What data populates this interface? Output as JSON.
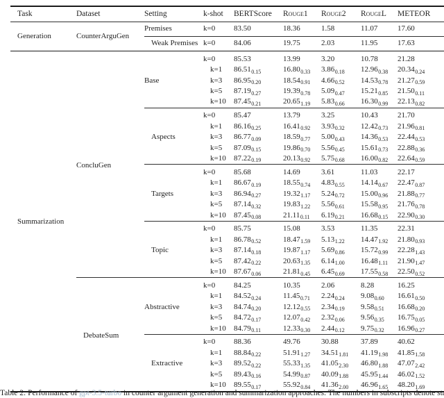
{
  "table": {
    "columns": [
      {
        "label": "Task",
        "smallcaps": false
      },
      {
        "label": "Dataset",
        "smallcaps": false
      },
      {
        "label": "Setting",
        "smallcaps": false
      },
      {
        "label": "k-shot",
        "smallcaps": false
      },
      {
        "label": "BERTScore",
        "smallcaps": false
      },
      {
        "label": "Rouge1",
        "smallcaps": true
      },
      {
        "label": "Rouge2",
        "smallcaps": true
      },
      {
        "label": "RougeL",
        "smallcaps": true
      },
      {
        "label": "METEOR",
        "smallcaps": false
      }
    ],
    "tasks": [
      {
        "task": "Generation",
        "datasets": [
          {
            "name": "CounterArguGen",
            "settings": [
              {
                "name": "Premises",
                "rows": [
                  [
                    "k=0",
                    "83.50",
                    "",
                    "18.36",
                    "",
                    "1.58",
                    "",
                    "11.07",
                    "",
                    "17.60",
                    ""
                  ]
                ]
              },
              {
                "name": "Weak Premises",
                "rows": [
                  [
                    "k=0",
                    "84.06",
                    "",
                    "19.75",
                    "",
                    "2.03",
                    "",
                    "11.95",
                    "",
                    "17.63",
                    ""
                  ]
                ]
              }
            ]
          }
        ]
      },
      {
        "task": "Summarization",
        "datasets": [
          {
            "name": "ConcluGen",
            "settings": [
              {
                "name": "Base",
                "rows": [
                  [
                    "k=0",
                    "85.53",
                    "",
                    "13.99",
                    "",
                    "3.20",
                    "",
                    "10.78",
                    "",
                    "21.28",
                    ""
                  ],
                  [
                    "k=1",
                    "86.51",
                    "0.15",
                    "16.80",
                    "0.33",
                    "3.86",
                    "0.18",
                    "12.96",
                    "0.38",
                    "20.34",
                    "0.24"
                  ],
                  [
                    "k=3",
                    "86.95",
                    "0.20",
                    "18.54",
                    "0.91",
                    "4.66",
                    "0.52",
                    "14.53",
                    "0.78",
                    "21.27",
                    "0.59"
                  ],
                  [
                    "k=5",
                    "87.19",
                    "0.27",
                    "19.39",
                    "0.78",
                    "5.09",
                    "0.47",
                    "15.21",
                    "0.85",
                    "21.50",
                    "0.11"
                  ],
                  [
                    "k=10",
                    "87.45",
                    "0.21",
                    "20.65",
                    "1.19",
                    "5.83",
                    "0.66",
                    "16.30",
                    "0.99",
                    "22.13",
                    "0.82"
                  ]
                ]
              },
              {
                "name": "Aspects",
                "rows": [
                  [
                    "k=0",
                    "85.47",
                    "",
                    "13.79",
                    "",
                    "3.25",
                    "",
                    "10.43",
                    "",
                    "21.70",
                    ""
                  ],
                  [
                    "k=1",
                    "86.16",
                    "0.25",
                    "16.41",
                    "0.92",
                    "3.93",
                    "0.32",
                    "12.42",
                    "0.73",
                    "21.96",
                    "0.81"
                  ],
                  [
                    "k=3",
                    "86.77",
                    "0.09",
                    "18.59",
                    "0.77",
                    "5.00",
                    "0.43",
                    "14.36",
                    "0.53",
                    "22.44",
                    "0.53"
                  ],
                  [
                    "k=5",
                    "87.09",
                    "0.15",
                    "19.86",
                    "0.70",
                    "5.56",
                    "0.45",
                    "15.61",
                    "0.73",
                    "22.88",
                    "0.36"
                  ],
                  [
                    "k=10",
                    "87.22",
                    "0.19",
                    "20.13",
                    "0.92",
                    "5.75",
                    "0.68",
                    "16.00",
                    "0.82",
                    "22.64",
                    "0.59"
                  ]
                ]
              },
              {
                "name": "Targets",
                "rows": [
                  [
                    "k=0",
                    "85.68",
                    "",
                    "14.69",
                    "",
                    "3.61",
                    "",
                    "11.03",
                    "",
                    "22.17",
                    ""
                  ],
                  [
                    "k=1",
                    "86.67",
                    "0.19",
                    "18.55",
                    "0.74",
                    "4.83",
                    "0.55",
                    "14.14",
                    "0.67",
                    "22.47",
                    "0.87"
                  ],
                  [
                    "k=3",
                    "86.94",
                    "0.27",
                    "19.32",
                    "1.17",
                    "5.24",
                    "0.72",
                    "15.00",
                    "0.96",
                    "21.88",
                    "0.77"
                  ],
                  [
                    "k=5",
                    "87.14",
                    "0.32",
                    "19.83",
                    "1.22",
                    "5.56",
                    "0.61",
                    "15.58",
                    "0.95",
                    "21.76",
                    "0.78"
                  ],
                  [
                    "k=10",
                    "87.45",
                    "0.08",
                    "21.11",
                    "0.11",
                    "6.19",
                    "0.21",
                    "16.68",
                    "0.15",
                    "22.90",
                    "0.30"
                  ]
                ]
              },
              {
                "name": "Topic",
                "rows": [
                  [
                    "k=0",
                    "85.75",
                    "",
                    "15.08",
                    "",
                    "3.53",
                    "",
                    "11.35",
                    "",
                    "22.31",
                    ""
                  ],
                  [
                    "k=1",
                    "86.78",
                    "0.52",
                    "18.47",
                    "1.59",
                    "5.13",
                    "1.22",
                    "14.47",
                    "1.92",
                    "21.80",
                    "0.93"
                  ],
                  [
                    "k=3",
                    "87.14",
                    "0.18",
                    "19.87",
                    "1.17",
                    "5.69",
                    "0.86",
                    "15.72",
                    "0.99",
                    "22.28",
                    "1.43"
                  ],
                  [
                    "k=5",
                    "87.42",
                    "0.22",
                    "20.63",
                    "1.35",
                    "6.14",
                    "1.00",
                    "16.48",
                    "1.11",
                    "21.90",
                    "1.47"
                  ],
                  [
                    "k=10",
                    "87.67",
                    "0.06",
                    "21.81",
                    "0.45",
                    "6.45",
                    "0.69",
                    "17.55",
                    "0.58",
                    "22.50",
                    "0.52"
                  ]
                ]
              }
            ]
          },
          {
            "name": "DebateSum",
            "settings": [
              {
                "name": "Abstractive",
                "rows": [
                  [
                    "k=0",
                    "84.25",
                    "",
                    "10.35",
                    "",
                    "2.06",
                    "",
                    "8.28",
                    "",
                    "16.25",
                    ""
                  ],
                  [
                    "k=1",
                    "84.52",
                    "0.24",
                    "11.45",
                    "0.71",
                    "2.24",
                    "0.24",
                    "9.08",
                    "0.60",
                    "16.61",
                    "0.50"
                  ],
                  [
                    "k=3",
                    "84.74",
                    "0.20",
                    "12.12",
                    "0.55",
                    "2.34",
                    "0.19",
                    "9.58",
                    "0.51",
                    "16.68",
                    "0.20"
                  ],
                  [
                    "k=5",
                    "84.72",
                    "0.17",
                    "12.07",
                    "0.42",
                    "2.32",
                    "0.06",
                    "9.56",
                    "0.35",
                    "16.75",
                    "0.05"
                  ],
                  [
                    "k=10",
                    "84.79",
                    "0.11",
                    "12.33",
                    "0.30",
                    "2.44",
                    "0.12",
                    "9.75",
                    "0.32",
                    "16.96",
                    "0.27"
                  ]
                ]
              },
              {
                "name": "Extractive",
                "rows": [
                  [
                    "k=0",
                    "88.36",
                    "",
                    "49.76",
                    "",
                    "30.88",
                    "",
                    "37.89",
                    "",
                    "40.62",
                    ""
                  ],
                  [
                    "k=1",
                    "88.84",
                    "0.22",
                    "51.91",
                    "1.27",
                    "34.51",
                    "1.81",
                    "41.19",
                    "1.98",
                    "41.85",
                    "1.58"
                  ],
                  [
                    "k=3",
                    "89.52",
                    "0.22",
                    "55.33",
                    "1.35",
                    "41.05",
                    "2.30",
                    "46.80",
                    "1.88",
                    "47.07",
                    "2.42"
                  ],
                  [
                    "k=5",
                    "89.43",
                    "0.16",
                    "54.99",
                    "0.87",
                    "40.09",
                    "1.88",
                    "45.95",
                    "1.44",
                    "46.02",
                    "1.52"
                  ],
                  [
                    "k=10",
                    "89.55",
                    "0.17",
                    "55.92",
                    "0.84",
                    "41.36",
                    "2.00",
                    "46.96",
                    "1.65",
                    "48.20",
                    "1.69"
                  ]
                ]
              }
            ]
          }
        ]
      }
    ]
  },
  "caption": {
    "prefix": "Table 2: Performance of ",
    "link": "gpt-3.5-turbo",
    "suffix": " in counter argument generation and summarization approaches. The numbers in subscripts denote standard deviations. For each"
  },
  "colors": {
    "rule": "#1a1a1a",
    "text": "#1f1f1f",
    "caption_link": "#9fb5c9"
  }
}
